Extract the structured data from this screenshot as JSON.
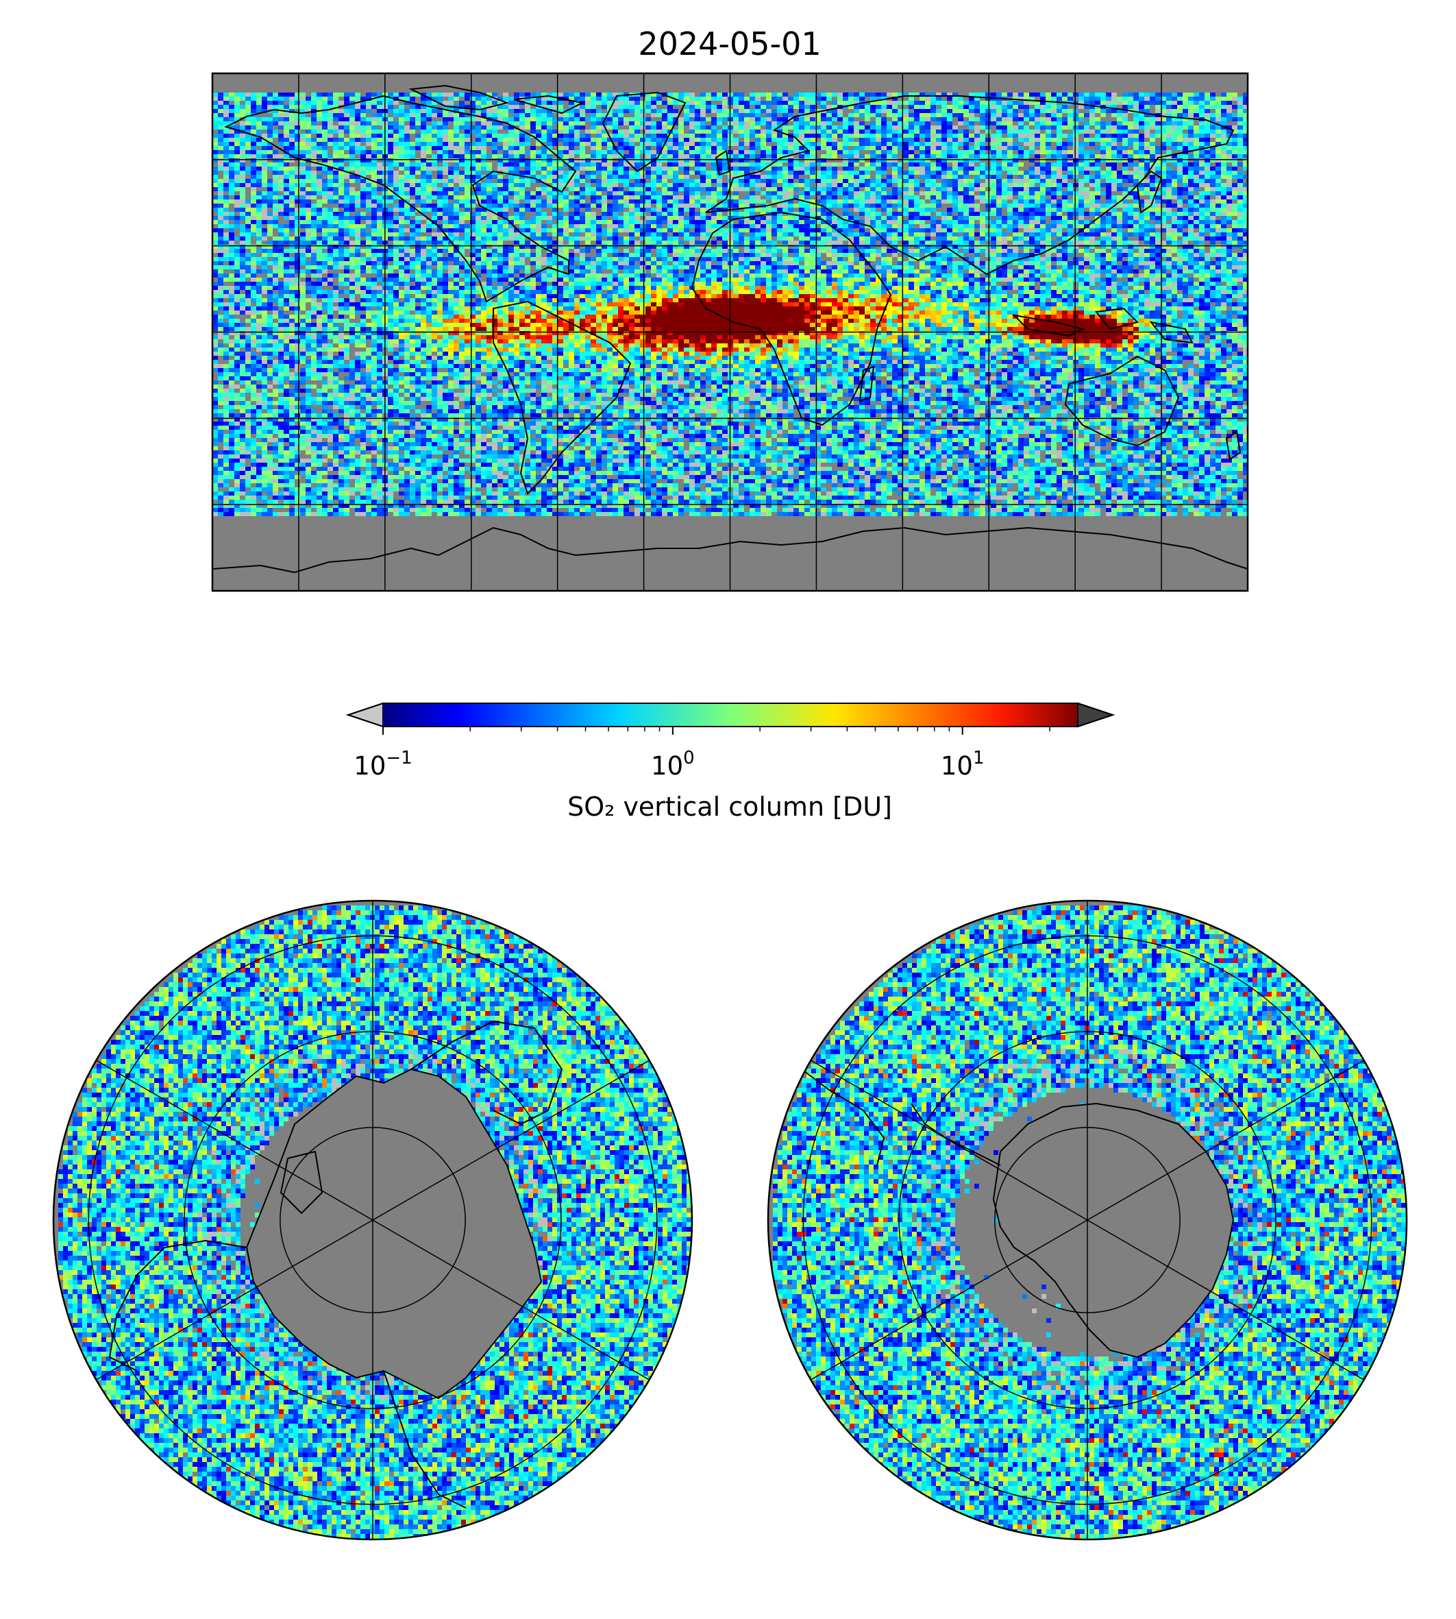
{
  "title": "2024-05-01",
  "colorbar": {
    "label": "SO₂ vertical column [DU]",
    "scale": "log",
    "range": [
      0.1,
      25
    ],
    "extend": "both",
    "colormap": "jet",
    "under_color": "#c8c8c8",
    "over_color": "#404040",
    "ticks": [
      {
        "value": 0.1,
        "base": "10",
        "exp": "−1"
      },
      {
        "value": 1,
        "base": "10",
        "exp": "0"
      },
      {
        "value": 10,
        "base": "10",
        "exp": "1"
      }
    ]
  },
  "maps": {
    "global": {
      "projection": "plate-carree",
      "lon_range": [
        -180,
        180
      ],
      "lat_range": [
        -90,
        90
      ],
      "gridline_lons": [
        -150,
        -120,
        -90,
        -60,
        -30,
        0,
        30,
        60,
        90,
        120,
        150
      ],
      "gridline_lats": [
        -60,
        -30,
        0,
        30,
        60
      ]
    },
    "north_polar": {
      "projection": "north-polar-stereographic",
      "gridline_rings": 3,
      "meridian_spokes": 6
    },
    "south_polar": {
      "projection": "south-polar-stereographic",
      "gridline_rings": 3,
      "meridian_spokes": 6
    }
  },
  "colors": {
    "background": "#ffffff",
    "land_nodata": "#808080",
    "coastline": "#000000",
    "gridline": "#000000"
  }
}
